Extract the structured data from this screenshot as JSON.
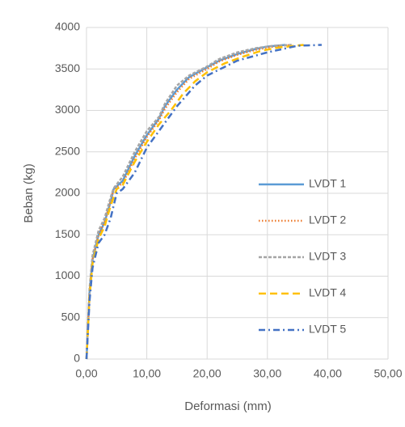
{
  "chart_data": {
    "type": "line",
    "x_label": "Deformasi (mm)",
    "y_label": "Beban (kg)",
    "xlim": [
      0,
      50
    ],
    "xticks": [
      {
        "value": 0,
        "label": "0,00"
      },
      {
        "value": 10,
        "label": "10,00"
      },
      {
        "value": 20,
        "label": "20,00"
      },
      {
        "value": 30,
        "label": "30,00"
      },
      {
        "value": 40,
        "label": "40,00"
      },
      {
        "value": 50,
        "label": "50,00"
      }
    ],
    "ylim": [
      0,
      4000
    ],
    "yticks": [
      0,
      500,
      1000,
      1500,
      2000,
      2500,
      3000,
      3500,
      4000
    ],
    "grid": true,
    "legend": "right",
    "series": [
      {
        "name": "LVDT 1",
        "color": "#5b9bd5",
        "style": "solid",
        "x": [
          0,
          0.5,
          1,
          2,
          3,
          4,
          4.5,
          6,
          8,
          10,
          12,
          13,
          15,
          17,
          20,
          22,
          25,
          28,
          30,
          33
        ],
        "values": [
          0,
          800,
          1200,
          1500,
          1650,
          1900,
          2050,
          2150,
          2450,
          2700,
          2900,
          3050,
          3250,
          3400,
          3520,
          3600,
          3680,
          3740,
          3770,
          3790
        ]
      },
      {
        "name": "LVDT 2",
        "color": "#ed7d31",
        "style": "dotted",
        "x": [
          0,
          0.5,
          1,
          2,
          3,
          4,
          4.5,
          6,
          8,
          10,
          12,
          13,
          15,
          17,
          20,
          22,
          25,
          28,
          31,
          34
        ],
        "values": [
          0,
          800,
          1200,
          1500,
          1650,
          1900,
          2050,
          2120,
          2420,
          2680,
          2880,
          3020,
          3220,
          3380,
          3500,
          3590,
          3670,
          3730,
          3770,
          3790
        ]
      },
      {
        "name": "LVDT 3",
        "color": "#a5a5a5",
        "style": "dashed",
        "x": [
          0,
          0.5,
          1,
          2,
          3,
          4,
          4.5,
          6,
          8,
          10,
          12,
          13,
          15,
          17,
          20,
          22,
          25,
          28,
          31,
          34
        ],
        "values": [
          0,
          850,
          1250,
          1550,
          1700,
          1950,
          2060,
          2200,
          2500,
          2750,
          2920,
          3080,
          3300,
          3420,
          3530,
          3620,
          3700,
          3750,
          3780,
          3790
        ]
      },
      {
        "name": "LVDT 4",
        "color": "#ffc000",
        "style": "long-dash",
        "x": [
          0,
          0.5,
          1,
          2,
          3,
          4,
          5,
          6,
          8,
          10,
          12,
          14,
          16,
          18,
          20,
          23,
          26,
          29,
          32,
          36
        ],
        "values": [
          0,
          750,
          1150,
          1450,
          1600,
          1850,
          2050,
          2100,
          2380,
          2620,
          2830,
          3000,
          3200,
          3350,
          3460,
          3570,
          3650,
          3720,
          3760,
          3790
        ]
      },
      {
        "name": "LVDT 5",
        "color": "#4472c4",
        "style": "dash-dot",
        "x": [
          0,
          0.5,
          1,
          2,
          3,
          4,
          5,
          6,
          8,
          10,
          13,
          15,
          18,
          20,
          25,
          30,
          35,
          39
        ],
        "values": [
          0,
          700,
          1100,
          1400,
          1500,
          1700,
          2000,
          2050,
          2250,
          2550,
          2850,
          3050,
          3300,
          3420,
          3600,
          3700,
          3780,
          3790
        ]
      }
    ]
  }
}
